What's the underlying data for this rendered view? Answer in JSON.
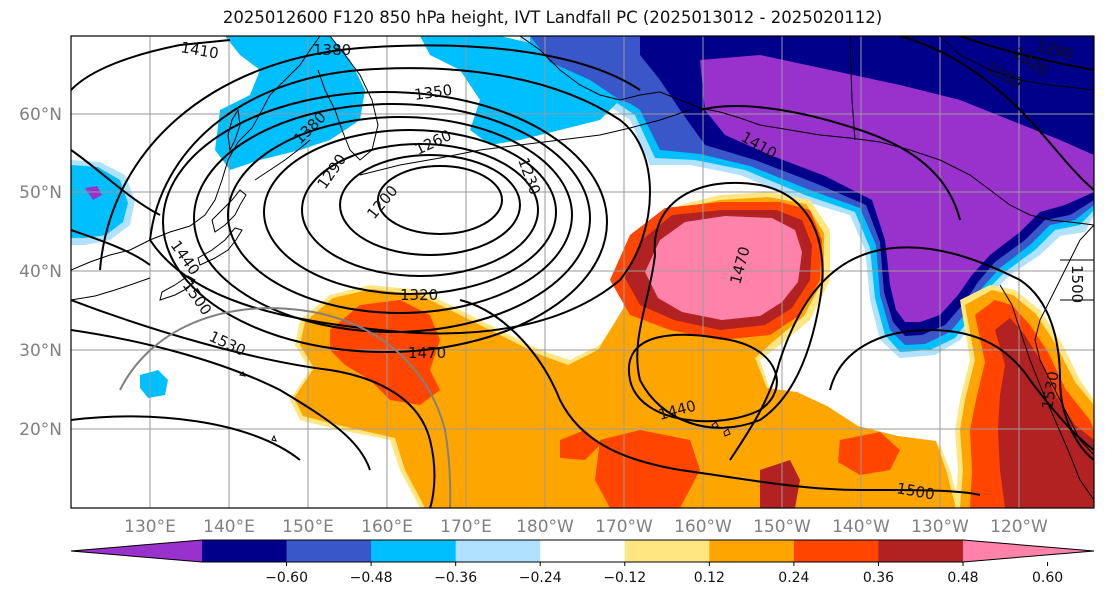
{
  "title": "2025012600 F120 850 hPa height, IVT Landfall PC (2025013012 - 2025020112)",
  "lat_labels": [
    "60°N",
    "50°N",
    "40°N",
    "30°N",
    "20°N"
  ],
  "lon_labels": [
    "130°E",
    "140°E",
    "150°E",
    "160°E",
    "170°E",
    "180°W",
    "170°W",
    "160°W",
    "150°W",
    "140°W",
    "130°W",
    "120°W"
  ],
  "contour_labels": [
    "1410",
    "1380",
    "1350",
    "1260",
    "1230",
    "1200",
    "1290",
    "1380",
    "1320",
    "1470",
    "1470",
    "1440",
    "1500",
    "1530",
    "1440",
    "1500",
    "1530",
    "1320",
    "1290",
    "1260",
    "1410",
    "1500"
  ],
  "colorbar": {
    "ticks": [
      "−0.60",
      "−0.48",
      "−0.36",
      "−0.24",
      "−0.12",
      "0.12",
      "0.24",
      "0.36",
      "0.48",
      "0.60"
    ],
    "colors": [
      "#9932cc",
      "#00008b",
      "#3a57c9",
      "#00bfff",
      "#b0e2ff",
      "#ffffff",
      "#ffe680",
      "#ffa500",
      "#ff4500",
      "#b22222",
      "#ff82ab"
    ]
  }
}
